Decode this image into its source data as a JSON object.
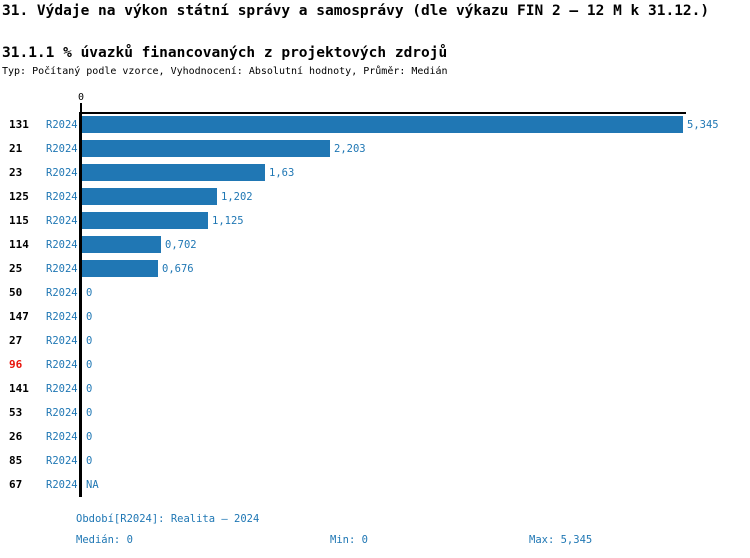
{
  "header": {
    "title": "31. Výdaje na výkon státní správy a samosprávy (dle výkazu FIN 2 – 12 M k 31.12.)",
    "subtitle": "31.1.1 % úvazků financovaných z projektových zdrojů",
    "meta": "Typ: Počítaný podle vzorce, Vyhodnocení: Absolutní hodnoty, Průměr: Medián"
  },
  "chart_data": {
    "type": "bar",
    "orientation": "horizontal",
    "title": "31.1.1 % úvazků financovaných z projektových zdrojů",
    "axis": {
      "tick_label": "0",
      "xlim": [
        0,
        5.345
      ],
      "grid": false
    },
    "series_label": "R2024",
    "categories": [
      "131",
      "21",
      "23",
      "125",
      "115",
      "114",
      "25",
      "50",
      "147",
      "27",
      "96",
      "141",
      "53",
      "26",
      "85",
      "67"
    ],
    "values": [
      5.345,
      2.203,
      1.63,
      1.202,
      1.125,
      0.702,
      0.676,
      0,
      0,
      0,
      0,
      0,
      0,
      0,
      0,
      null
    ],
    "value_labels": [
      "5,345",
      "2,203",
      "1,63",
      "1,202",
      "1,125",
      "0,702",
      "0,676",
      "0",
      "0",
      "0",
      "0",
      "0",
      "0",
      "0",
      "0",
      "NA"
    ],
    "highlighted_category": "96",
    "colors": {
      "bar": "#2077b4",
      "text_blue": "#1f77b4",
      "category_text": "#000000",
      "highlight_red": "#e8130a"
    }
  },
  "footer": {
    "period": "Období[R2024]: Realita – 2024",
    "median": "Medián: 0",
    "min": "Min: 0",
    "max": "Max: 5,345"
  }
}
